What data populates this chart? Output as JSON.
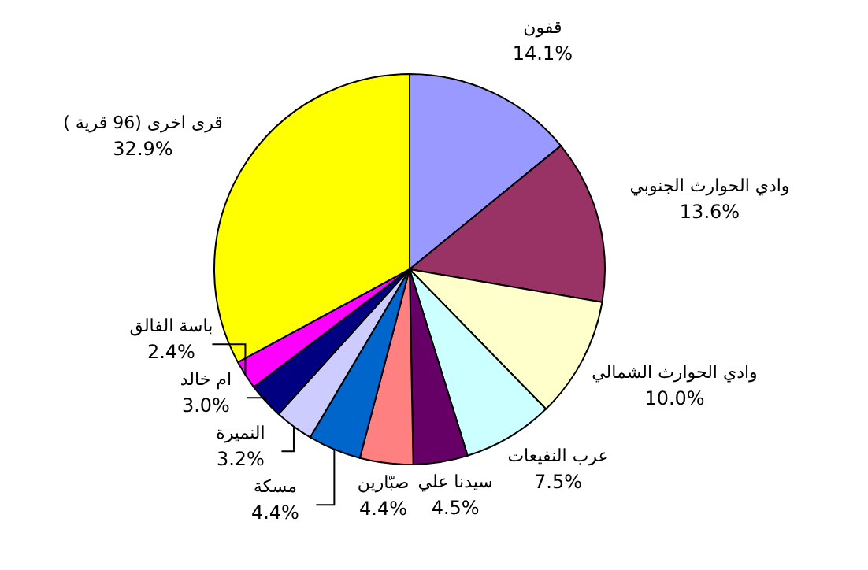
{
  "chart_data": {
    "type": "pie",
    "categories": [
      "قفون",
      "وادي الحوارث الجنوبي",
      "وادي الحوارث الشمالي",
      "عرب النفيعات",
      "سيدنا علي",
      "صبّارين",
      "مسكة",
      "النميرة",
      "ام خالد",
      "باسة الفالق",
      "قرى اخرى (96 قرية )"
    ],
    "values": [
      14.1,
      13.6,
      10.0,
      7.5,
      4.5,
      4.4,
      4.4,
      3.2,
      3.0,
      2.4,
      32.9
    ],
    "value_labels": [
      "14.1%",
      "13.6%",
      "10.0%",
      "7.5%",
      "4.5%",
      "4.4%",
      "4.4%",
      "3.2%",
      "3.0%",
      "2.4%",
      "32.9%"
    ],
    "colors": [
      "#9999ff",
      "#993366",
      "#ffffcc",
      "#ccffff",
      "#660066",
      "#ff8080",
      "#0066cc",
      "#ccccff",
      "#000080",
      "#ff00ff",
      "#ffff00"
    ]
  }
}
